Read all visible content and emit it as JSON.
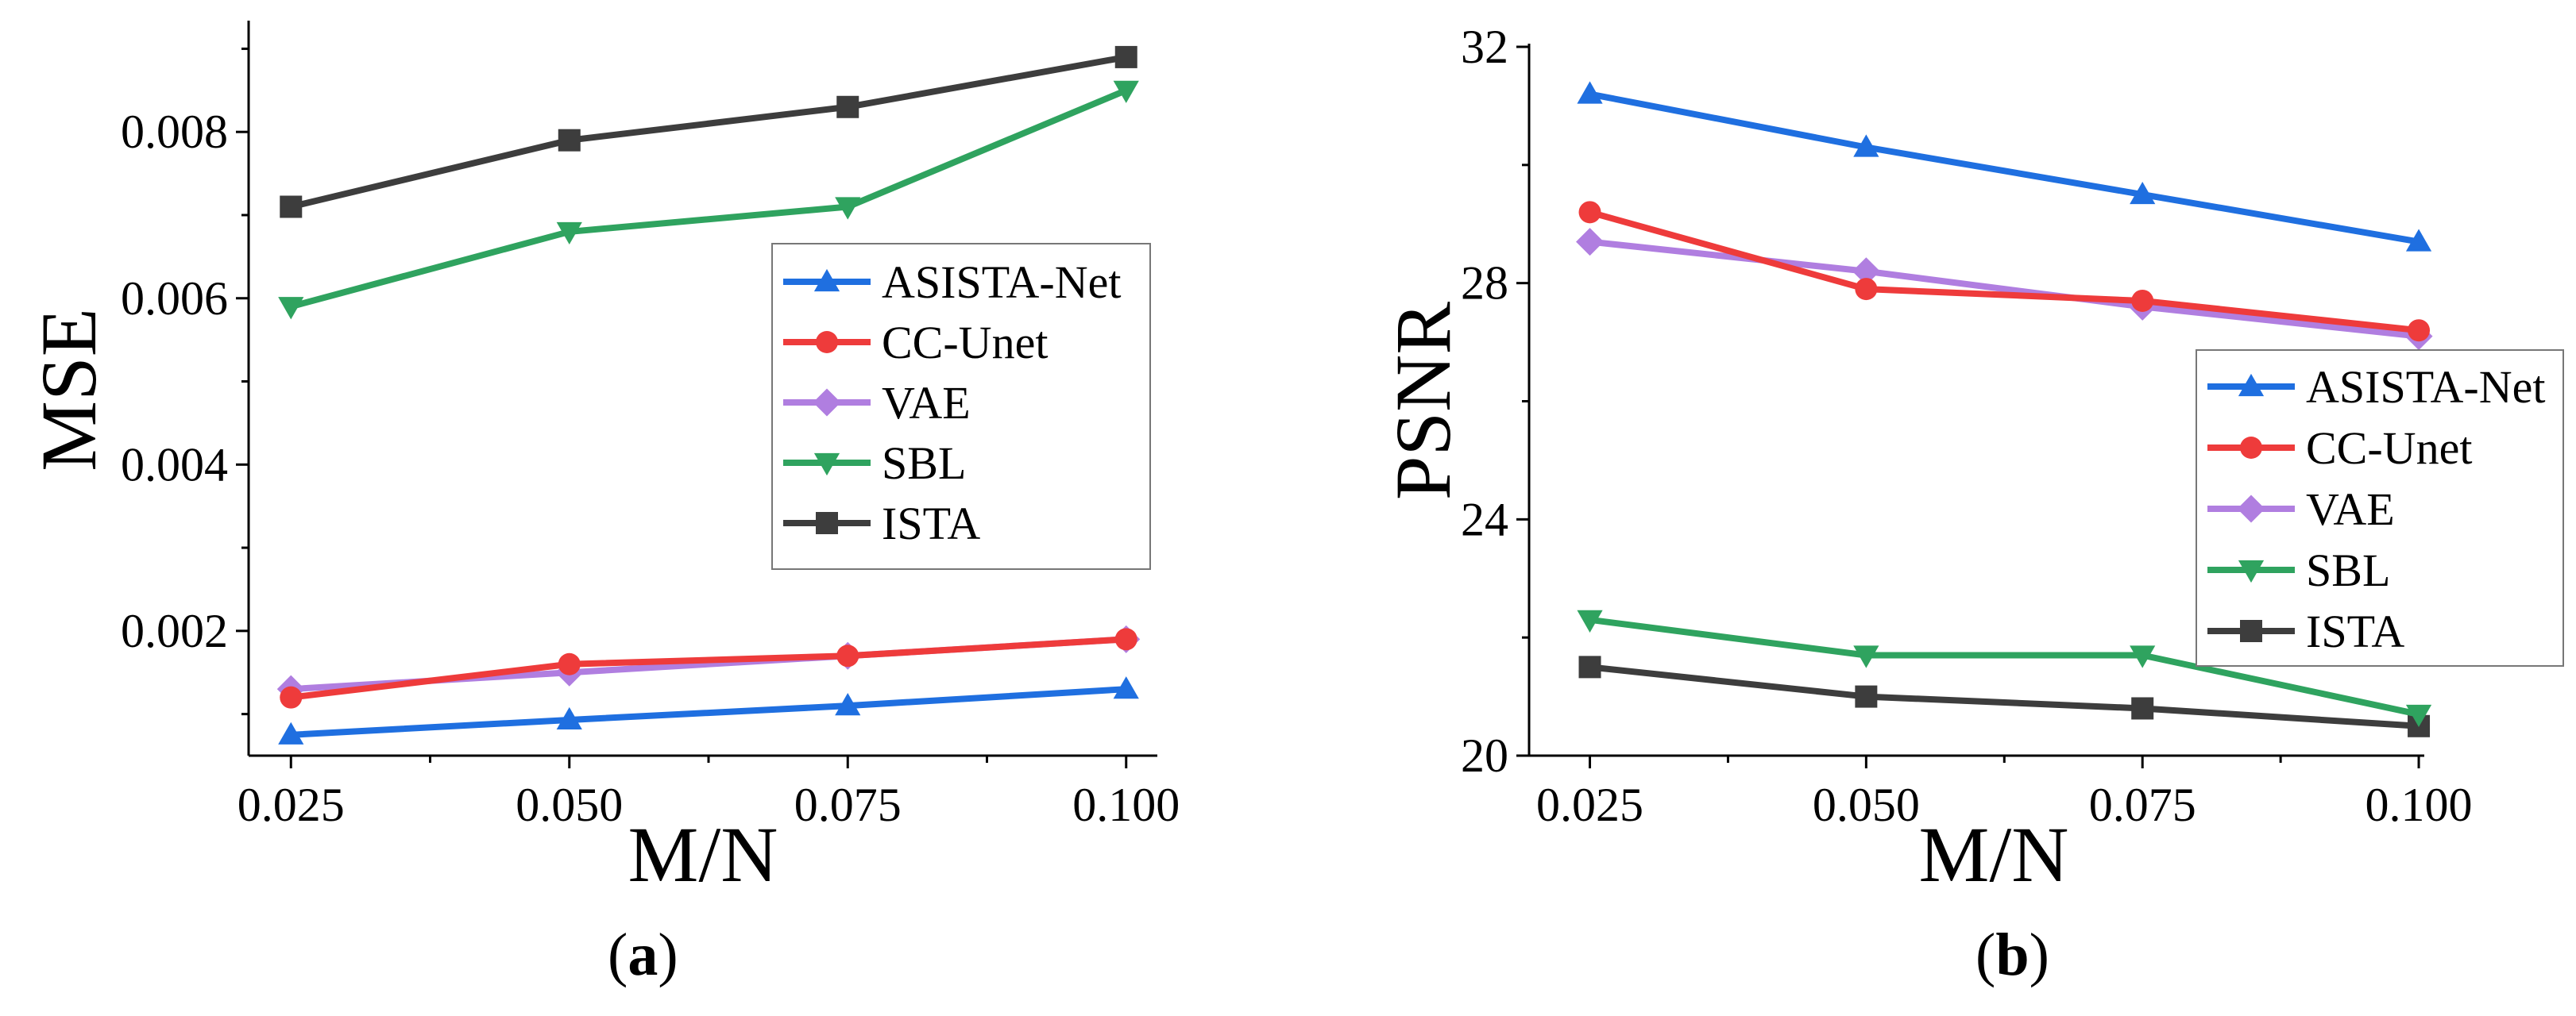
{
  "chart_data": [
    {
      "type": "line",
      "panel": "a",
      "caption_prefix": "(",
      "caption_letter": "a",
      "caption_suffix": ")",
      "xlabel": "M/N",
      "ylabel": "MSE",
      "x": [
        0.025,
        0.05,
        0.075,
        0.1
      ],
      "xticks": [
        "0.025",
        "0.050",
        "0.075",
        "0.100"
      ],
      "xlim": [
        0.0212,
        0.1028
      ],
      "ylim": [
        0.0005,
        0.0093
      ],
      "yticks": [
        "0.002",
        "0.004",
        "0.006",
        "0.008"
      ],
      "ytick_values": [
        0.002,
        0.004,
        0.006,
        0.008
      ],
      "minor_yticks": [
        0.001,
        0.003,
        0.005,
        0.007,
        0.009
      ],
      "grid": false,
      "legend_position": "center-right",
      "series": [
        {
          "name": "ASISTA-Net",
          "color": "#1f6fe0",
          "marker": "triangle-up",
          "values": [
            0.00075,
            0.00093,
            0.0011,
            0.0013
          ]
        },
        {
          "name": "CC-Unet",
          "color": "#ee3b3b",
          "marker": "circle",
          "values": [
            0.0012,
            0.0016,
            0.0017,
            0.0019
          ]
        },
        {
          "name": "VAE",
          "color": "#b07ee0",
          "marker": "diamond",
          "values": [
            0.0013,
            0.0015,
            0.0017,
            0.0019
          ]
        },
        {
          "name": "SBL",
          "color": "#2fa35f",
          "marker": "triangle-down",
          "values": [
            0.0059,
            0.0068,
            0.0071,
            0.0085
          ]
        },
        {
          "name": "ISTA",
          "color": "#3d3d3d",
          "marker": "square",
          "values": [
            0.0071,
            0.0079,
            0.0083,
            0.0089
          ]
        }
      ]
    },
    {
      "type": "line",
      "panel": "b",
      "caption_prefix": "(",
      "caption_letter": "b",
      "caption_suffix": ")",
      "xlabel": "M/N",
      "ylabel": "PSNR",
      "x": [
        0.025,
        0.05,
        0.075,
        0.1
      ],
      "xticks": [
        "0.025",
        "0.050",
        "0.075",
        "0.100"
      ],
      "xlim": [
        0.0195,
        0.1005
      ],
      "ylim": [
        20,
        32
      ],
      "yticks": [
        "20",
        "24",
        "28",
        "32"
      ],
      "ytick_values": [
        20,
        24,
        28,
        32
      ],
      "minor_yticks": [
        22,
        26,
        30
      ],
      "grid": false,
      "legend_position": "right",
      "series": [
        {
          "name": "ASISTA-Net",
          "color": "#1f6fe0",
          "marker": "triangle-up",
          "values": [
            31.2,
            30.3,
            29.5,
            28.7
          ]
        },
        {
          "name": "CC-Unet",
          "color": "#ee3b3b",
          "marker": "circle",
          "values": [
            29.2,
            27.9,
            27.7,
            27.2
          ]
        },
        {
          "name": "VAE",
          "color": "#b07ee0",
          "marker": "diamond",
          "values": [
            28.7,
            28.2,
            27.6,
            27.1
          ]
        },
        {
          "name": "SBL",
          "color": "#2fa35f",
          "marker": "triangle-down",
          "values": [
            22.3,
            21.7,
            21.7,
            20.7
          ]
        },
        {
          "name": "ISTA",
          "color": "#3d3d3d",
          "marker": "square",
          "values": [
            21.5,
            21.0,
            20.8,
            20.5
          ]
        }
      ]
    }
  ]
}
